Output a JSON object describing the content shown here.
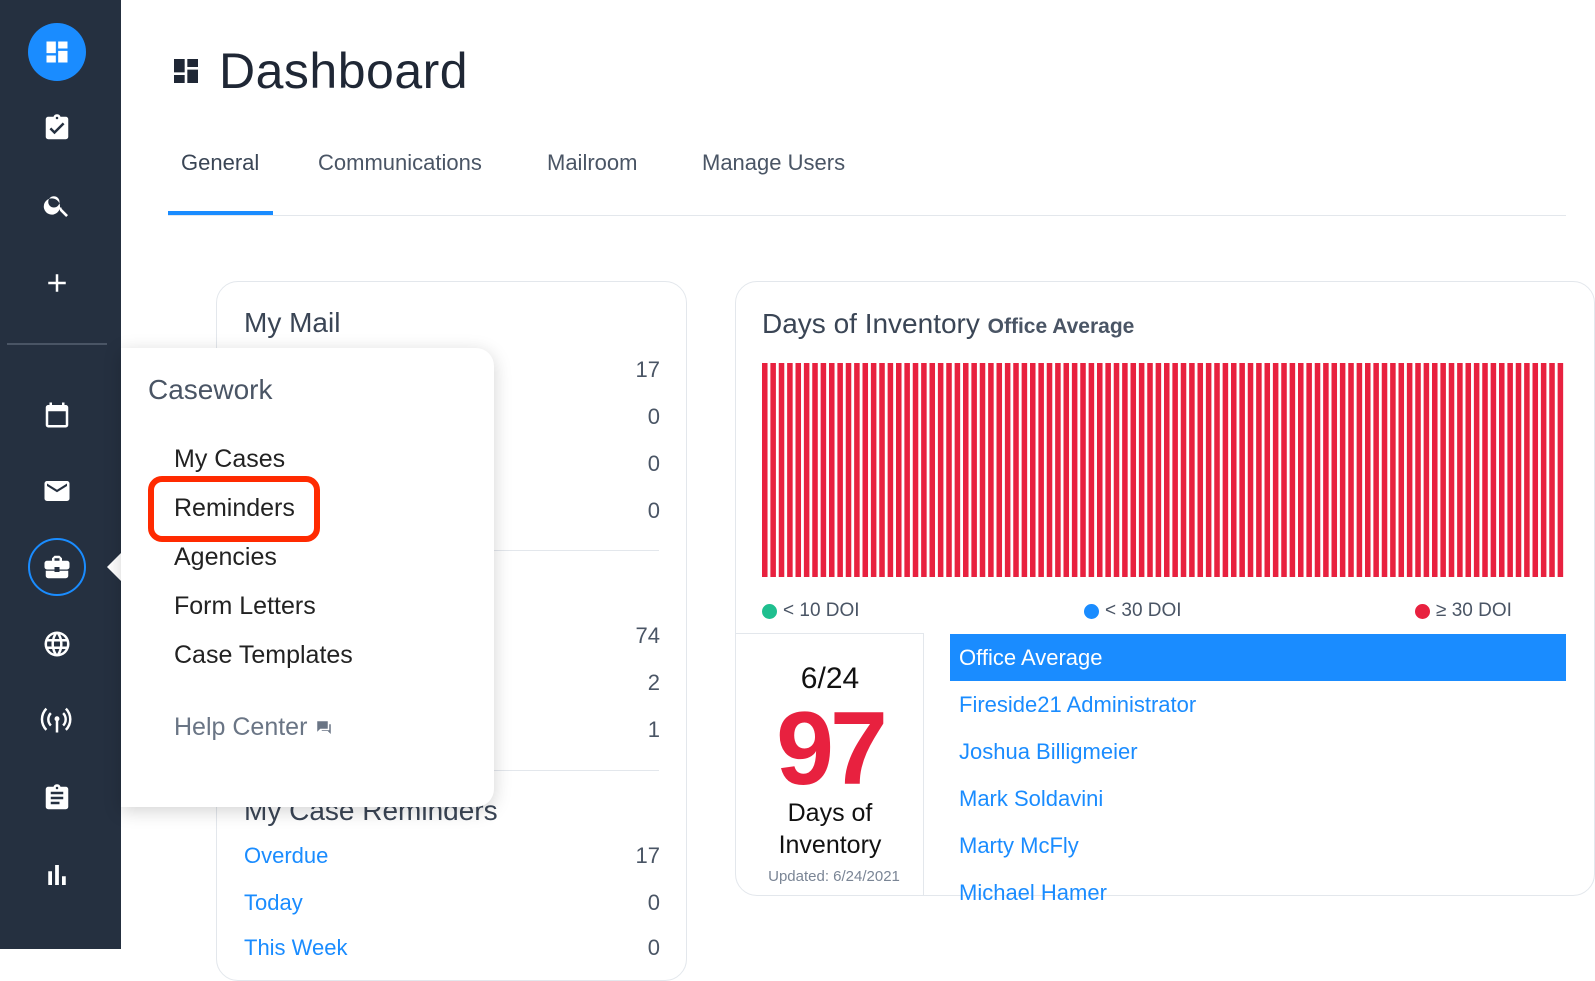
{
  "page": {
    "title": "Dashboard"
  },
  "tabs": [
    {
      "label": "General",
      "active": true
    },
    {
      "label": "Communications"
    },
    {
      "label": "Mailroom"
    },
    {
      "label": "Manage Users"
    }
  ],
  "sidebar": {
    "icons": [
      "dashboard-icon",
      "clipboard-check-icon",
      "search-icon",
      "plus-icon",
      "calendar-icon",
      "mail-icon",
      "briefcase-icon",
      "globe-icon",
      "broadcast-icon",
      "clipboard-list-icon",
      "bar-chart-icon"
    ],
    "active_color": "#1a8cff",
    "background": "#253040"
  },
  "my_mail": {
    "title": "My Mail",
    "section1_counts": [
      "17",
      "0",
      "0",
      "0"
    ],
    "section2_counts": [
      "74",
      "2",
      "1"
    ]
  },
  "case_reminders": {
    "title": "My Case Reminders",
    "rows": [
      {
        "label": "Overdue",
        "count": "17"
      },
      {
        "label": "Today",
        "count": "0"
      },
      {
        "label": "This Week",
        "count": "0"
      }
    ]
  },
  "inventory": {
    "title": "Days of Inventory",
    "subtitle": "Office Average",
    "legend": [
      {
        "label": "< 10 DOI",
        "color": "#1fbf8f"
      },
      {
        "label": "< 30 DOI",
        "color": "#1a8cff"
      },
      {
        "label": "≥ 30 DOI",
        "color": "#e8213f"
      }
    ],
    "date": "6/24",
    "value": "97",
    "value_label": "Days of Inventory",
    "updated": "Updated: 6/24/2021",
    "people": [
      "Office Average",
      "Fireside21 Administrator",
      "Joshua Billigmeier",
      "Mark Soldavini",
      "Marty McFly",
      "Michael Hamer"
    ]
  },
  "chart_data": {
    "type": "bar",
    "title": "Days of Inventory",
    "subtitle": "Office Average",
    "bar_count": 96,
    "series": [
      {
        "name": "≥ 30 DOI",
        "color": "#e8213f"
      }
    ]
  },
  "popover": {
    "title": "Casework",
    "items": [
      "My Cases",
      "Reminders",
      "Agencies",
      "Form Letters",
      "Case Templates"
    ],
    "help": "Help Center",
    "highlighted": "Reminders"
  }
}
